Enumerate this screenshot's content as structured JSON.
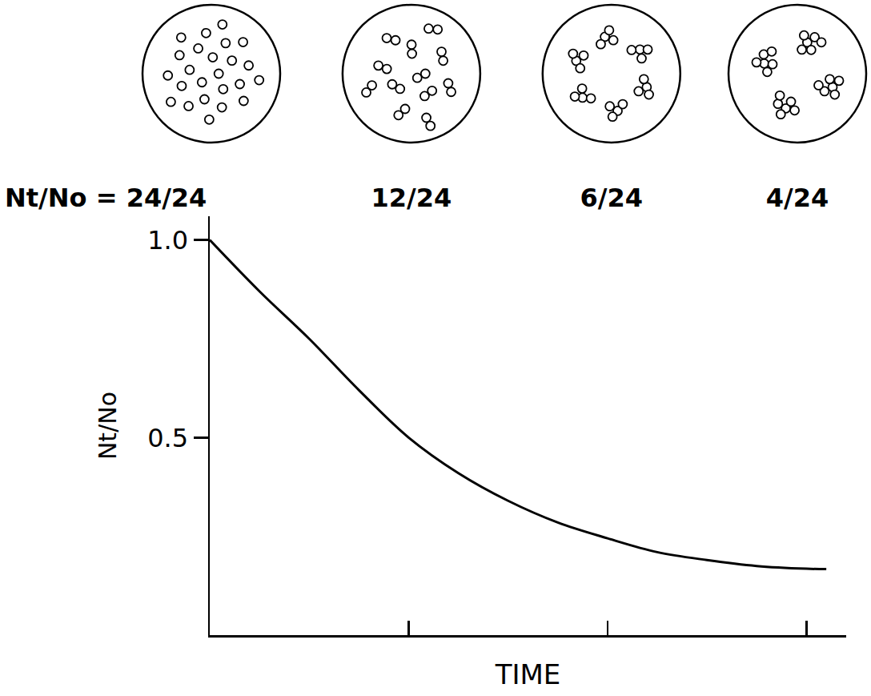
{
  "chart_data": {
    "type": "line",
    "x": [
      0,
      0.25,
      0.5,
      0.75,
      1.0,
      1.25,
      1.5,
      1.75,
      2.0,
      2.25,
      2.5,
      2.75,
      3.0,
      3.1
    ],
    "values": [
      1.0,
      0.87,
      0.75,
      0.62,
      0.5,
      0.41,
      0.34,
      0.285,
      0.245,
      0.21,
      0.19,
      0.175,
      0.168,
      0.167
    ],
    "color": "#000000",
    "line_style": "smooth",
    "xlim": [
      0,
      3.2
    ],
    "ylim": [
      0,
      1.06
    ],
    "xticks": [
      1,
      2,
      3
    ],
    "yticks": [
      0.5,
      {
        "value": 1,
        "label": "1.0"
      }
    ],
    "tick_labels": "y",
    "grid": false,
    "x_label": "TIME",
    "y_label": "Nt/No"
  },
  "stages": [
    {
      "label": "Nt/No = 24/24",
      "particles": 24,
      "clusters": 24
    },
    {
      "label": "12/24",
      "particles": 24,
      "clusters": 12
    },
    {
      "label": "6/24",
      "particles": 24,
      "clusters": 6
    },
    {
      "label": "4/24",
      "particles": 24,
      "clusters": 4
    }
  ]
}
